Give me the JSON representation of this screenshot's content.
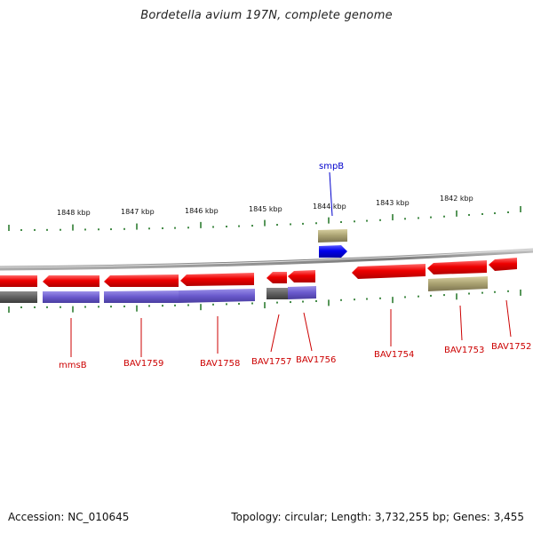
{
  "header": {
    "title": "Bordetella avium 197N, complete genome"
  },
  "footer": {
    "accession": "Accession: NC_010645",
    "summary": "Topology: circular; Length: 3,732,255 bp; Genes: 3,455"
  },
  "ruler": {
    "ticks": [
      "1848 kbp",
      "1847 kbp",
      "1846 kbp",
      "1845 kbp",
      "1844 kbp",
      "1843 kbp",
      "1842 kbp"
    ]
  },
  "genes": [
    {
      "name": "smpB",
      "strand": "plus"
    },
    {
      "name": "mmsB",
      "strand": "minus"
    },
    {
      "name": "BAV1759",
      "strand": "minus"
    },
    {
      "name": "BAV1758",
      "strand": "minus"
    },
    {
      "name": "BAV1757",
      "strand": "minus"
    },
    {
      "name": "BAV1756",
      "strand": "minus"
    },
    {
      "name": "BAV1754",
      "strand": "minus"
    },
    {
      "name": "BAV1753",
      "strand": "minus"
    },
    {
      "name": "BAV1752",
      "strand": "minus"
    }
  ],
  "colors": {
    "plus_gene": "#0000ee",
    "minus_gene": "#ee0000",
    "rna_feature": "#a8a070",
    "cds_feature": "#6a5acd",
    "backbone": "#888888",
    "ticks": "#2e7d32",
    "label_line_plus": "#0000cc",
    "label_line_minus": "#cc0000"
  }
}
